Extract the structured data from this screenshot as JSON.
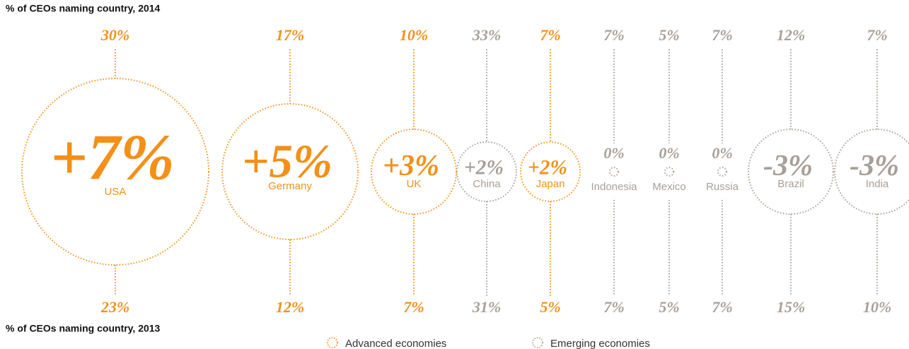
{
  "chart_data": {
    "type": "bubble",
    "top_label": "% of CEOs naming country, 2014",
    "bottom_label": "% of CEOs naming country, 2013",
    "categories": [
      "USA",
      "Germany",
      "UK",
      "China",
      "Japan",
      "Indonesia",
      "Mexico",
      "Russia",
      "Brazil",
      "India"
    ],
    "group_index": [
      0,
      0,
      0,
      1,
      0,
      1,
      1,
      1,
      1,
      1
    ],
    "groups": [
      {
        "name": "Advanced economies",
        "color": "#f39019"
      },
      {
        "name": "Emerging economies",
        "color": "#a89f97"
      }
    ],
    "values_2014": [
      30,
      17,
      10,
      33,
      7,
      7,
      5,
      7,
      12,
      7
    ],
    "value_labels_2014": [
      "30%",
      "17%",
      "10%",
      "33%",
      "7%",
      "7%",
      "5%",
      "7%",
      "12%",
      "7%"
    ],
    "values_2013": [
      23,
      12,
      7,
      31,
      5,
      7,
      5,
      7,
      15,
      10
    ],
    "value_labels_2013": [
      "23%",
      "12%",
      "7%",
      "31%",
      "5%",
      "7%",
      "5%",
      "7%",
      "15%",
      "10%"
    ],
    "change": {
      "values": [
        7,
        5,
        3,
        2,
        2,
        0,
        0,
        0,
        -3,
        -3
      ],
      "value_labels": [
        "+7%",
        "+5%",
        "+3%",
        "+2%",
        "+2%",
        "0%",
        "0%",
        "0%",
        "-3%",
        "-3%"
      ]
    }
  }
}
